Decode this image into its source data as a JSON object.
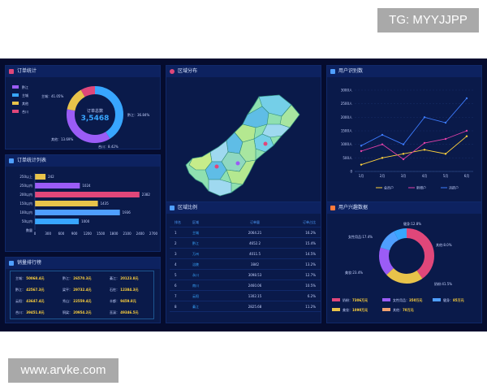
{
  "watermarks": {
    "top": "TG: MYYJJPP",
    "bottom": "www.arvke.com"
  },
  "colors": {
    "bg": "#050c2e",
    "panel": "#0a1a4a",
    "accent": "#38a6ff",
    "yellow": "#ffd23c",
    "pink": "#e0477a",
    "purple": "#9b5cf6",
    "blue": "#4f9fff"
  },
  "panels": {
    "order_stats": {
      "title": "订单统计",
      "icon": "document-icon"
    },
    "order_list": {
      "title": "订单统计列表",
      "icon": "list-icon"
    },
    "sales_rank": {
      "title": "销量排行榜",
      "icon": "shield-icon"
    },
    "region_map": {
      "title": "区域分布",
      "icon": "location-pin-icon"
    },
    "region_ratio": {
      "title": "区域比例",
      "icon": "list-icon"
    },
    "user_stats": {
      "title": "用户识别数",
      "icon": "list-icon"
    },
    "user_interest": {
      "title": "用户兴趣数据",
      "icon": "fire-icon"
    }
  },
  "donut_center": {
    "label": "订单总数",
    "value": "3,5468"
  },
  "donut_labels": {
    "zhudi": "主城：41.05%",
    "qiandong": "黔江：36.84%",
    "other": "其他：13.69%",
    "total": "合川：8.42%"
  },
  "donut_legend": [
    "黔江",
    "主城",
    "其他",
    "合川"
  ],
  "region_table": {
    "headers": [
      "排名",
      "区域",
      "订单量",
      "订单占比"
    ],
    "rows": [
      [
        "1",
        "主城",
        "2064.21",
        "16.2%"
      ],
      [
        "2",
        "黔江",
        "4652.2",
        "15.4%"
      ],
      [
        "3",
        "万州",
        "4011.5",
        "14.5%"
      ],
      [
        "4",
        "涪陵",
        "3842",
        "13.2%"
      ],
      [
        "5",
        "永川",
        "3098.53",
        "12.7%"
      ],
      [
        "6",
        "南川",
        "2460.06",
        "10.5%"
      ],
      [
        "7",
        "云阳",
        "1302.15",
        "6.2%"
      ],
      [
        "8",
        "綦江",
        "2825.68",
        "11.2%"
      ]
    ]
  },
  "sales_rank": [
    {
      "region": "主城",
      "value": "50068.4元"
    },
    {
      "region": "黔江",
      "value": "26570.3元"
    },
    {
      "region": "綦江",
      "value": "20123.8元"
    },
    {
      "region": "黔江",
      "value": "42567.3元"
    },
    {
      "region": "梁平",
      "value": "29732.4元"
    },
    {
      "region": "石柱",
      "value": "12384.3元"
    },
    {
      "region": "云阳",
      "value": "43647.4元"
    },
    {
      "region": "秀山",
      "value": "22559.4元"
    },
    {
      "region": "丰都",
      "value": "9459.8元"
    },
    {
      "region": "合川",
      "value": "39451.8元"
    },
    {
      "region": "铜梁",
      "value": "20954.2元"
    },
    {
      "region": "巫溪",
      "value": "49346.5元"
    }
  ],
  "interest_labels": {
    "top": "健身:12.8%",
    "left_top": "女性用品:17.4%",
    "right": "其他:8.0%",
    "left": "美妆:23.4%",
    "bottom_right": "奶粉:41.5%"
  },
  "interest_legend": [
    {
      "name": "奶粉",
      "value": "7306万元"
    },
    {
      "name": "女性用品",
      "value": "350万元"
    },
    {
      "name": "健身",
      "value": "85万元"
    },
    {
      "name": "美妆",
      "value": "1090万元"
    },
    {
      "name": "其他",
      "value": "70万元"
    }
  ],
  "chart_data": [
    {
      "type": "bar",
      "orientation": "horizontal",
      "categories": [
        "250以上",
        "250以内",
        "200以内",
        "150以内",
        "100以内",
        "50以内"
      ],
      "values": [
        242,
        1024,
        2382,
        1435,
        1936,
        1000
      ],
      "value_labels": [
        "242",
        "1024",
        "2382",
        "1435",
        "1936",
        "1000"
      ],
      "x_ticks": [
        "0",
        "300",
        "600",
        "900",
        "1200",
        "1500",
        "1800",
        "2100",
        "2400",
        "2700"
      ],
      "xlim": [
        0,
        2700
      ],
      "y_caption": "数量",
      "colors": [
        "#e8c34a",
        "#9b5cf6",
        "#e0477a",
        "#e8c34a",
        "#4f9fff",
        "#38a6ff"
      ]
    },
    {
      "type": "line",
      "categories": [
        "1月",
        "2月",
        "3月",
        "4月",
        "5月",
        "6月"
      ],
      "y_ticks": [
        "0",
        "500人",
        "1000人",
        "1500人",
        "2000人",
        "2500人",
        "3000人"
      ],
      "ylim": [
        0,
        3000
      ],
      "series": [
        {
          "name": "会员户",
          "color": "#ffd23c",
          "values": [
            250,
            500,
            650,
            800,
            650,
            1300
          ]
        },
        {
          "name": "新增户",
          "color": "#e040a8",
          "values": [
            750,
            1000,
            450,
            1050,
            1200,
            1500
          ]
        },
        {
          "name": "活跃户",
          "color": "#3d7cff",
          "values": [
            950,
            1350,
            1000,
            2000,
            1800,
            2700
          ]
        }
      ],
      "legend_position": "bottom"
    },
    {
      "type": "pie",
      "categories": [
        "奶粉",
        "美妆",
        "女性用品",
        "健身",
        "其他"
      ],
      "values": [
        41.5,
        23.4,
        17.4,
        12.8,
        8.0
      ],
      "colors": [
        "#e0477a",
        "#e8c34a",
        "#9b5cf6",
        "#4f9fff",
        "#38a6ff"
      ]
    },
    {
      "type": "pie",
      "categories": [
        "主城",
        "黔江",
        "其他",
        "合川"
      ],
      "values": [
        41.05,
        36.84,
        13.69,
        8.42
      ],
      "colors": [
        "#38a6ff",
        "#9b5cf6",
        "#e8c34a",
        "#e0477a"
      ]
    }
  ]
}
